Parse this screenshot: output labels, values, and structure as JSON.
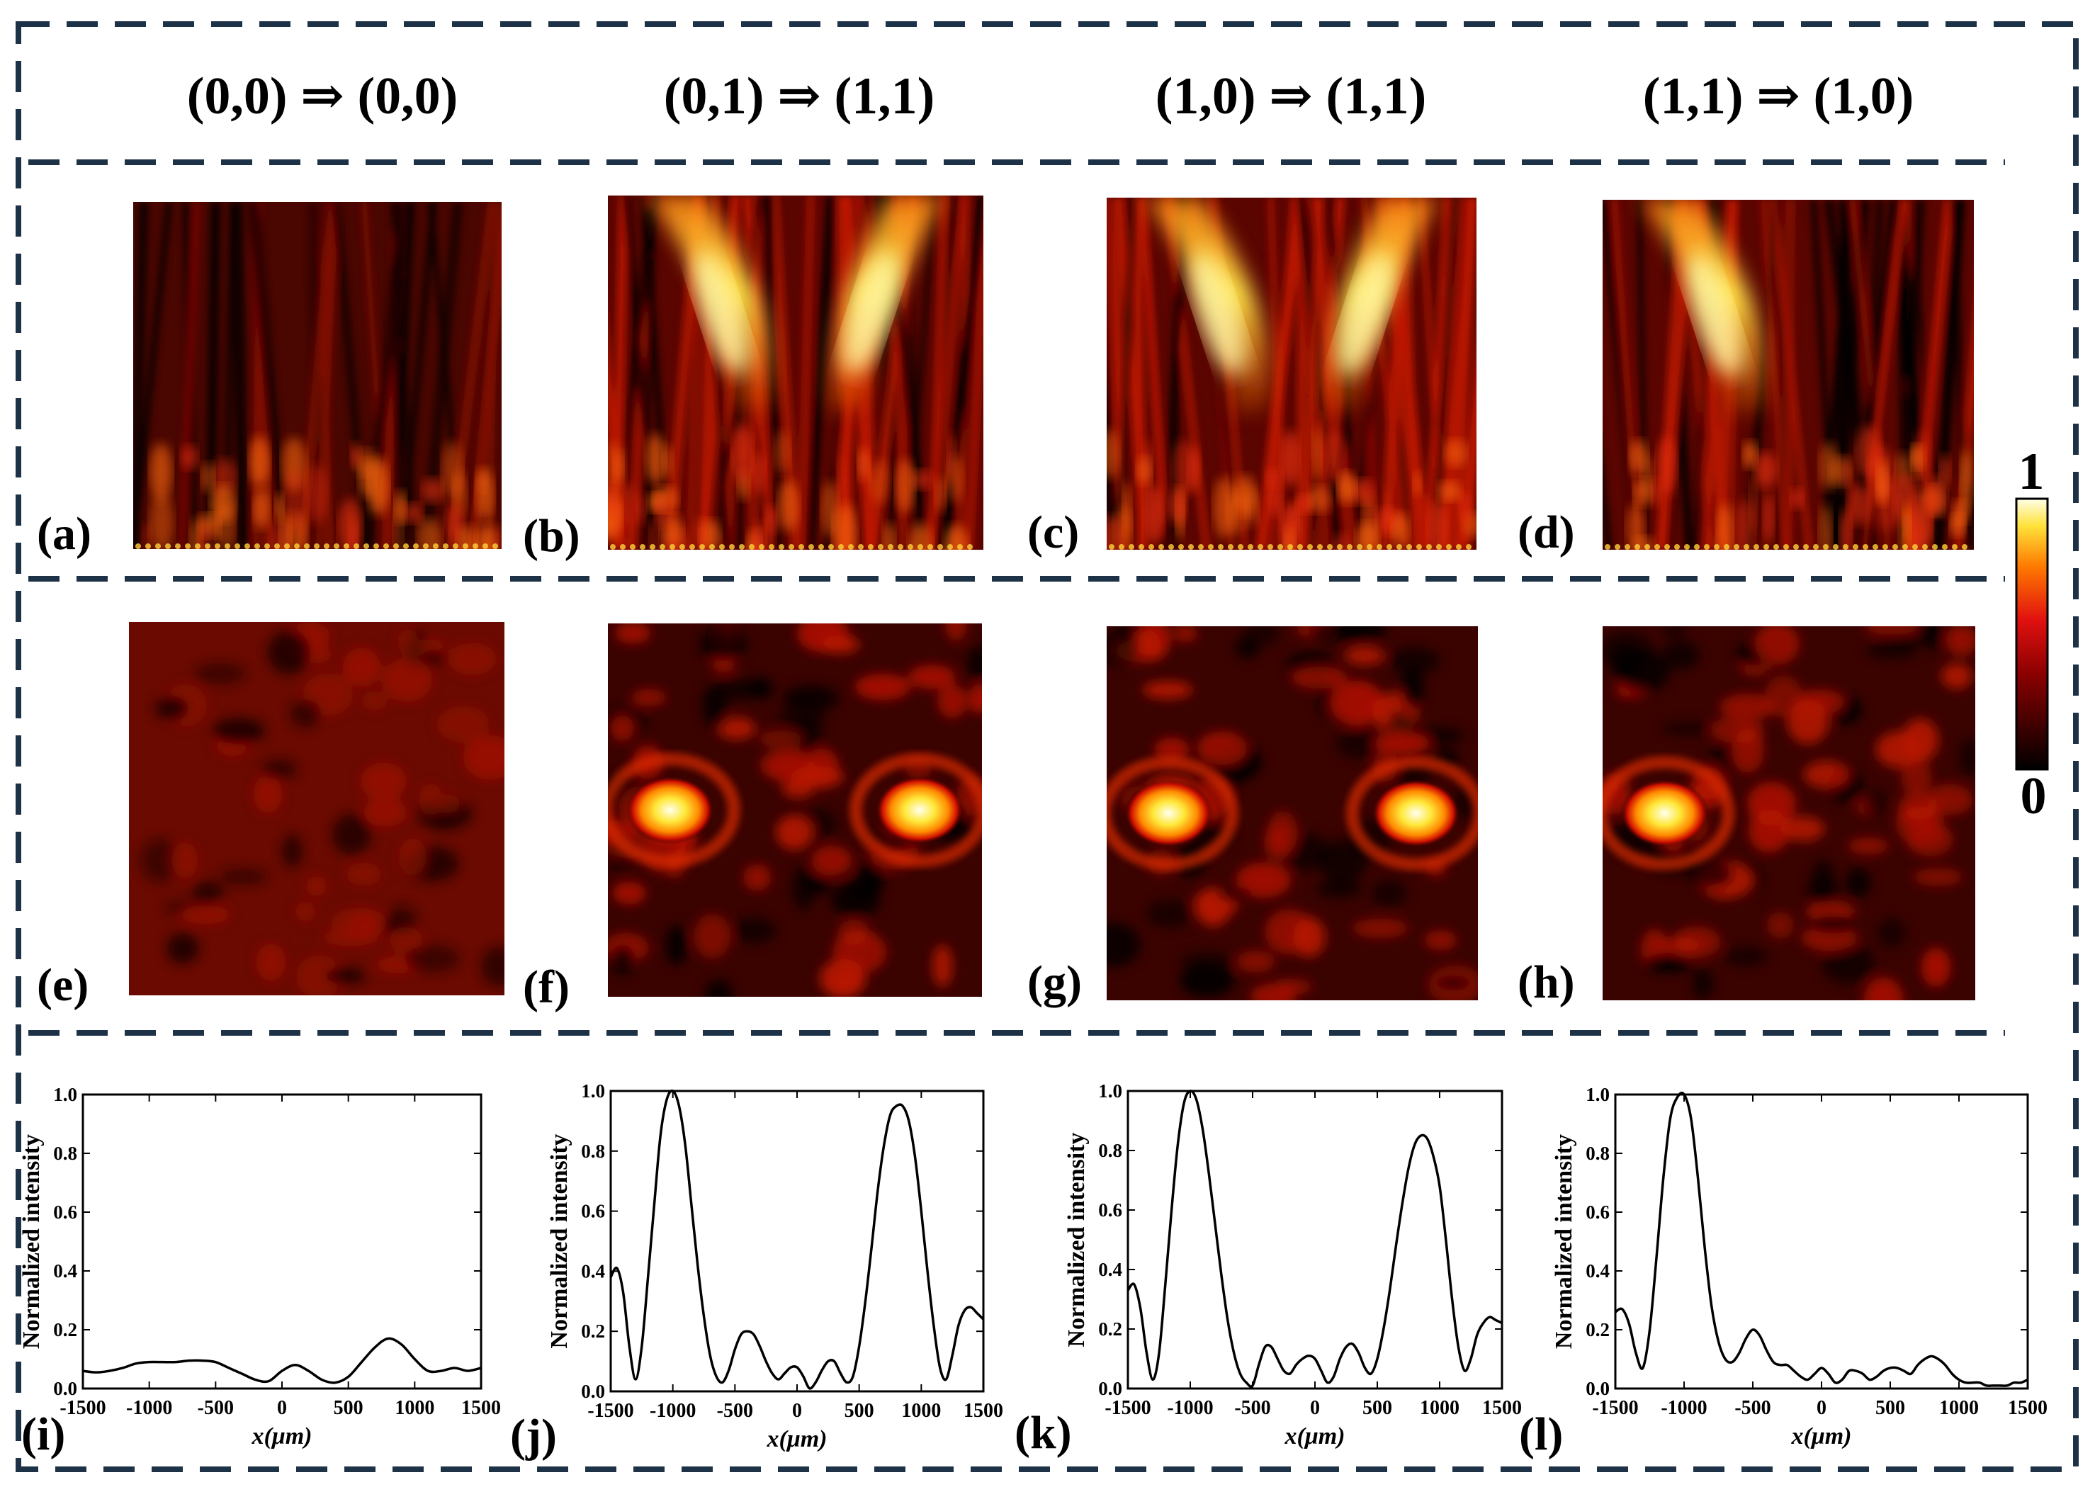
{
  "headers": [
    "(0,0) ⇒ (0,0)",
    "(0,1) ⇒ (1,1)",
    "(1,0) ⇒ (1,1)",
    "(1,1) ⇒ (1,0)"
  ],
  "panel_labels": [
    "(a)",
    "(b)",
    "(c)",
    "(d)",
    "(e)",
    "(f)",
    "(g)",
    "(h)",
    "(i)",
    "(j)",
    "(k)",
    "(l)"
  ],
  "colorbar": {
    "max_label": "1",
    "min_label": "0"
  },
  "colors": {
    "frame": "#1d3247",
    "curve": "#000000"
  },
  "row_top": [
    {
      "label": "(a)",
      "beams": []
    },
    {
      "label": "(b)",
      "beams": [
        -1,
        1
      ]
    },
    {
      "label": "(c)",
      "beams": [
        -1,
        1
      ]
    },
    {
      "label": "(d)",
      "beams": [
        -1
      ]
    }
  ],
  "row_mid": [
    {
      "label": "(e)",
      "spots": []
    },
    {
      "label": "(f)",
      "spots": [
        -1000,
        1000
      ]
    },
    {
      "label": "(g)",
      "spots": [
        -1000,
        1000
      ]
    },
    {
      "label": "(h)",
      "spots": [
        -1000
      ]
    }
  ],
  "chart_data": [
    {
      "type": "line",
      "label": "(i)",
      "xlabel": "x(μm)",
      "ylabel": "Normalized intensity",
      "xlim": [
        -1500,
        1500
      ],
      "ylim": [
        0,
        1
      ],
      "xticks": [
        -1500,
        -1000,
        -500,
        0,
        500,
        1000,
        1500
      ],
      "yticks": [
        0.0,
        0.2,
        0.4,
        0.6,
        0.8,
        1.0
      ],
      "x": [
        -1500,
        -1400,
        -1300,
        -1200,
        -1100,
        -1000,
        -900,
        -800,
        -700,
        -600,
        -500,
        -400,
        -300,
        -200,
        -100,
        0,
        100,
        200,
        300,
        400,
        500,
        600,
        700,
        800,
        900,
        1000,
        1100,
        1200,
        1300,
        1400,
        1500
      ],
      "y": [
        0.06,
        0.055,
        0.06,
        0.07,
        0.085,
        0.09,
        0.09,
        0.09,
        0.095,
        0.095,
        0.09,
        0.07,
        0.05,
        0.03,
        0.025,
        0.06,
        0.08,
        0.06,
        0.03,
        0.02,
        0.04,
        0.09,
        0.14,
        0.17,
        0.15,
        0.1,
        0.06,
        0.06,
        0.07,
        0.06,
        0.07
      ]
    },
    {
      "type": "line",
      "label": "(j)",
      "xlabel": "x(μm)",
      "ylabel": "Normalized intensity",
      "xlim": [
        -1500,
        1500
      ],
      "ylim": [
        0,
        1
      ],
      "xticks": [
        -1500,
        -1000,
        -500,
        0,
        500,
        1000,
        1500
      ],
      "yticks": [
        0.0,
        0.2,
        0.4,
        0.6,
        0.8,
        1.0
      ],
      "x": [
        -1500,
        -1450,
        -1400,
        -1350,
        -1300,
        -1250,
        -1200,
        -1150,
        -1100,
        -1050,
        -1000,
        -950,
        -900,
        -850,
        -800,
        -750,
        -700,
        -650,
        -600,
        -550,
        -500,
        -450,
        -400,
        -350,
        -300,
        -250,
        -200,
        -150,
        -100,
        -50,
        0,
        50,
        100,
        150,
        200,
        250,
        300,
        350,
        400,
        450,
        500,
        550,
        600,
        650,
        700,
        750,
        800,
        850,
        900,
        950,
        1000,
        1050,
        1100,
        1150,
        1200,
        1250,
        1300,
        1350,
        1400,
        1450,
        1500
      ],
      "y": [
        0.38,
        0.41,
        0.33,
        0.15,
        0.04,
        0.15,
        0.38,
        0.62,
        0.85,
        0.97,
        1.0,
        0.95,
        0.82,
        0.62,
        0.42,
        0.25,
        0.12,
        0.05,
        0.03,
        0.07,
        0.14,
        0.19,
        0.2,
        0.19,
        0.15,
        0.1,
        0.06,
        0.04,
        0.06,
        0.08,
        0.08,
        0.05,
        0.01,
        0.03,
        0.07,
        0.1,
        0.1,
        0.06,
        0.03,
        0.05,
        0.15,
        0.3,
        0.48,
        0.67,
        0.82,
        0.92,
        0.95,
        0.95,
        0.9,
        0.78,
        0.6,
        0.4,
        0.22,
        0.08,
        0.04,
        0.12,
        0.22,
        0.27,
        0.28,
        0.26,
        0.24
      ]
    },
    {
      "type": "line",
      "label": "(k)",
      "xlabel": "x(μm)",
      "ylabel": "Normalized intensity",
      "xlim": [
        -1500,
        1500
      ],
      "ylim": [
        0,
        1
      ],
      "xticks": [
        -1500,
        -1000,
        -500,
        0,
        500,
        1000,
        1500
      ],
      "yticks": [
        0.0,
        0.2,
        0.4,
        0.6,
        0.8,
        1.0
      ],
      "x": [
        -1500,
        -1450,
        -1400,
        -1350,
        -1300,
        -1250,
        -1200,
        -1150,
        -1100,
        -1050,
        -1000,
        -950,
        -900,
        -850,
        -800,
        -750,
        -700,
        -650,
        -600,
        -550,
        -500,
        -450,
        -400,
        -350,
        -300,
        -250,
        -200,
        -150,
        -100,
        -50,
        0,
        50,
        100,
        150,
        200,
        250,
        300,
        350,
        400,
        450,
        500,
        550,
        600,
        650,
        700,
        750,
        800,
        850,
        900,
        950,
        1000,
        1050,
        1100,
        1150,
        1200,
        1250,
        1300,
        1350,
        1400,
        1450,
        1500
      ],
      "y": [
        0.33,
        0.35,
        0.27,
        0.12,
        0.03,
        0.12,
        0.35,
        0.6,
        0.82,
        0.96,
        1.0,
        0.97,
        0.87,
        0.72,
        0.55,
        0.38,
        0.23,
        0.12,
        0.05,
        0.02,
        0.01,
        0.08,
        0.14,
        0.14,
        0.1,
        0.06,
        0.05,
        0.08,
        0.1,
        0.11,
        0.1,
        0.06,
        0.02,
        0.04,
        0.1,
        0.14,
        0.15,
        0.12,
        0.07,
        0.05,
        0.1,
        0.2,
        0.33,
        0.48,
        0.62,
        0.74,
        0.82,
        0.85,
        0.84,
        0.78,
        0.68,
        0.5,
        0.3,
        0.14,
        0.06,
        0.1,
        0.18,
        0.22,
        0.24,
        0.23,
        0.22
      ]
    },
    {
      "type": "line",
      "label": "(l)",
      "xlabel": "x(μm)",
      "ylabel": "Normalized intensity",
      "xlim": [
        -1500,
        1500
      ],
      "ylim": [
        0,
        1
      ],
      "xticks": [
        -1500,
        -1000,
        -500,
        0,
        500,
        1000,
        1500
      ],
      "yticks": [
        0.0,
        0.2,
        0.4,
        0.6,
        0.8,
        1.0
      ],
      "x": [
        -1500,
        -1450,
        -1400,
        -1350,
        -1300,
        -1250,
        -1200,
        -1150,
        -1100,
        -1050,
        -1000,
        -950,
        -900,
        -850,
        -800,
        -750,
        -700,
        -650,
        -600,
        -550,
        -500,
        -450,
        -400,
        -350,
        -300,
        -250,
        -200,
        -150,
        -100,
        -50,
        0,
        50,
        100,
        150,
        200,
        250,
        300,
        350,
        400,
        450,
        500,
        550,
        600,
        650,
        700,
        750,
        800,
        850,
        900,
        950,
        1000,
        1050,
        1100,
        1150,
        1200,
        1250,
        1300,
        1350,
        1400,
        1450,
        1500
      ],
      "y": [
        0.26,
        0.27,
        0.22,
        0.12,
        0.07,
        0.2,
        0.45,
        0.72,
        0.92,
        0.99,
        1.0,
        0.92,
        0.72,
        0.48,
        0.28,
        0.16,
        0.1,
        0.09,
        0.12,
        0.17,
        0.2,
        0.18,
        0.13,
        0.09,
        0.08,
        0.08,
        0.06,
        0.04,
        0.03,
        0.05,
        0.07,
        0.05,
        0.02,
        0.03,
        0.06,
        0.06,
        0.05,
        0.03,
        0.04,
        0.06,
        0.07,
        0.07,
        0.06,
        0.05,
        0.08,
        0.1,
        0.11,
        0.1,
        0.08,
        0.05,
        0.03,
        0.02,
        0.02,
        0.02,
        0.01,
        0.01,
        0.01,
        0.01,
        0.02,
        0.02,
        0.03
      ]
    }
  ]
}
